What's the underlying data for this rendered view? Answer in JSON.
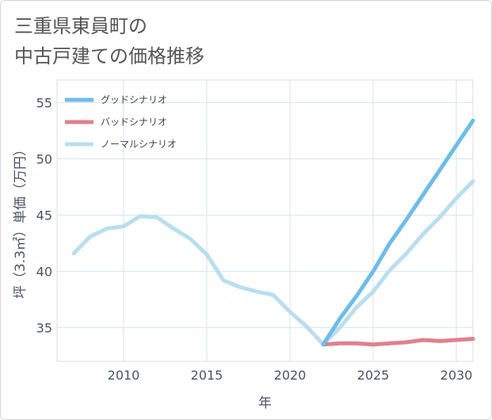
{
  "title": {
    "line1": "三重県東員町の",
    "line2": "中古戸建ての価格推移"
  },
  "chart_data": {
    "type": "line",
    "xlabel": "年",
    "ylabel": "坪（3.3㎡）単価（万円）",
    "xlim": [
      2006,
      2031
    ],
    "ylim": [
      32,
      57
    ],
    "xticks": [
      2010,
      2015,
      2020,
      2025,
      2030
    ],
    "yticks": [
      35,
      40,
      45,
      50,
      55
    ],
    "grid": true,
    "legend_position": "top-left",
    "series": [
      {
        "name": "グッドシナリオ",
        "color": "#6ebcea",
        "x": [
          2022,
          2023,
          2024,
          2025,
          2026,
          2027,
          2028,
          2029,
          2030,
          2031
        ],
        "y": [
          33.5,
          35.8,
          37.8,
          40.0,
          42.5,
          44.6,
          46.8,
          49.0,
          51.2,
          53.4
        ]
      },
      {
        "name": "バッドシナリオ",
        "color": "#e0808d",
        "x": [
          2022,
          2023,
          2024,
          2025,
          2026,
          2027,
          2028,
          2029,
          2030,
          2031
        ],
        "y": [
          33.5,
          33.6,
          33.6,
          33.5,
          33.6,
          33.7,
          33.9,
          33.8,
          33.9,
          34.0
        ]
      },
      {
        "name": "ノーマルシナリオ",
        "color": "#b9def0",
        "x": [
          2007,
          2008,
          2009,
          2010,
          2011,
          2012,
          2013,
          2014,
          2015,
          2016,
          2017,
          2018,
          2019,
          2020,
          2021,
          2022,
          2023,
          2024,
          2025,
          2026,
          2027,
          2028,
          2029,
          2030,
          2031
        ],
        "y": [
          41.6,
          43.1,
          43.8,
          44.0,
          44.9,
          44.8,
          43.8,
          42.9,
          41.5,
          39.2,
          38.6,
          38.2,
          37.9,
          36.4,
          35.1,
          33.5,
          35.0,
          36.8,
          38.2,
          40.1,
          41.6,
          43.3,
          44.8,
          46.5,
          48.0
        ]
      }
    ]
  }
}
